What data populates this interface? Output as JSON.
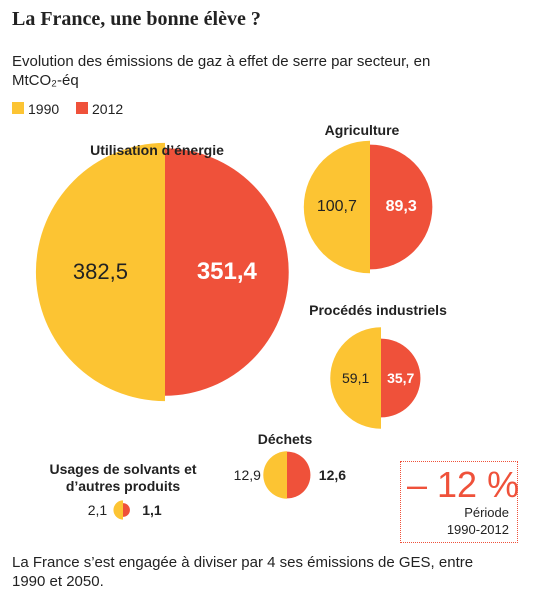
{
  "chart_data": {
    "type": "halfcircle",
    "title": "La France, une bonne élève ?",
    "subtitle": "Evolution des émissions de gaz à effet de serre par secteur, en MtCO₂-éq",
    "categories": [
      "Utilisation d’énergie",
      "Agriculture",
      "Procédés industriels",
      "Déchets",
      "Usages de solvants et d’autres produits"
    ],
    "series": [
      {
        "name": "1990",
        "color": "#fcc433",
        "values": [
          382.5,
          100.7,
          59.1,
          12.9,
          2.1
        ],
        "value_labels": [
          "382,5",
          "100,7",
          "59,1",
          "12,9",
          "2,1"
        ]
      },
      {
        "name": "2012",
        "color": "#ef513a",
        "values": [
          351.4,
          89.3,
          35.7,
          12.6,
          1.1
        ],
        "value_labels": [
          "351,4",
          "89,3",
          "35,7",
          "12,6",
          "1,1"
        ]
      }
    ],
    "annotation": {
      "label": "– 12 %",
      "text": "Période",
      "period": "1990-2012"
    },
    "note": "La France s’est engagée à diviser par 4 ses émissions de GES, entre 1990 et 2050."
  }
}
